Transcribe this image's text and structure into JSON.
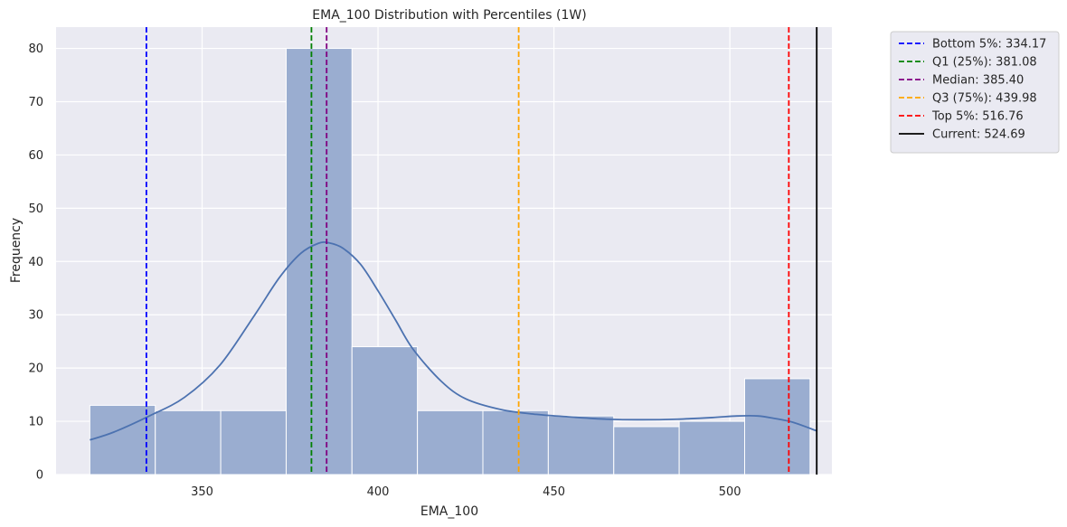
{
  "chart_data": {
    "type": "bar",
    "title": "EMA_100 Distribution with Percentiles (1W)",
    "xlabel": "EMA_100",
    "ylabel": "Frequency",
    "xlim": [
      308.5,
      529
    ],
    "ylim": [
      0,
      84
    ],
    "grid": true,
    "legend_placement": "outside-top-right",
    "x_ticks": [
      350,
      400,
      450,
      500
    ],
    "y_ticks": [
      0,
      10,
      20,
      30,
      40,
      50,
      60,
      70,
      80
    ],
    "bin_edges": [
      318.1,
      336.7,
      355.3,
      373.9,
      392.6,
      411.2,
      429.8,
      448.4,
      467.0,
      485.6,
      504.2,
      522.8
    ],
    "counts": [
      13,
      12,
      12,
      80,
      24,
      12,
      12,
      11,
      9,
      10,
      18
    ],
    "bar_color": "#9aadd0",
    "kde": {
      "color": "#4c72b0",
      "x": [
        318.1,
        325,
        335,
        345,
        355,
        365,
        372,
        378,
        383,
        386,
        390,
        395,
        400,
        405,
        410,
        418,
        425,
        435,
        445,
        455,
        465,
        475,
        485,
        495,
        502,
        508,
        513,
        518,
        524.7
      ],
      "y": [
        6.5,
        8.0,
        11.0,
        14.5,
        20.5,
        30.0,
        37.0,
        41.5,
        43.4,
        43.5,
        42.5,
        39.5,
        34.5,
        29.0,
        23.5,
        17.5,
        14.2,
        12.2,
        11.3,
        10.8,
        10.4,
        10.3,
        10.4,
        10.7,
        11.0,
        11.0,
        10.5,
        9.8,
        8.2
      ]
    },
    "reference_lines": [
      {
        "label": "Bottom 5%: 334.17",
        "value": 334.17,
        "color": "#0000ff",
        "dashed": true
      },
      {
        "label": "Q1 (25%): 381.08",
        "value": 381.08,
        "color": "#008000",
        "dashed": true
      },
      {
        "label": "Median: 385.40",
        "value": 385.4,
        "color": "#800080",
        "dashed": true
      },
      {
        "label": "Q3 (75%): 439.98",
        "value": 439.98,
        "color": "#ffa500",
        "dashed": true
      },
      {
        "label": "Top 5%: 516.76",
        "value": 516.76,
        "color": "#ff0000",
        "dashed": true
      },
      {
        "label": "Current: 524.69",
        "value": 524.69,
        "color": "#000000",
        "dashed": false
      }
    ]
  }
}
